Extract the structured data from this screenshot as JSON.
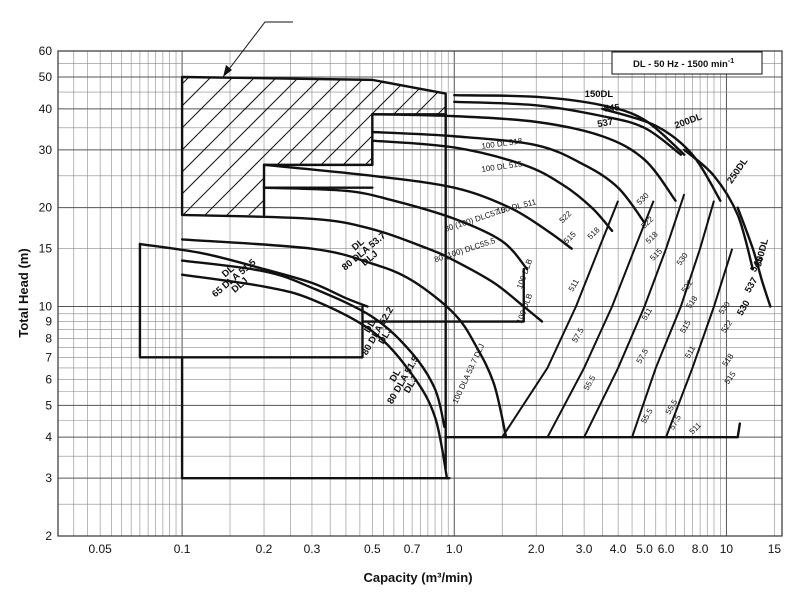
{
  "chart_data": {
    "type": "line",
    "title_box": "DL - 50 Hz - 1500 min",
    "title_sup": "-1",
    "xlabel": "Capacity  (m³/min)",
    "ylabel": "Total Head  (m)",
    "x_scale": "log",
    "y_scale": "log",
    "xlim": [
      0.035,
      16
    ],
    "ylim": [
      2,
      60
    ],
    "grid": true,
    "x_ticks": [
      "0.05",
      "0.1",
      "0.2",
      "0.3",
      "0.5",
      "0.7",
      "1.0",
      "2.0",
      "3.0",
      "4.0",
      "5.0",
      "6.0",
      "8.0",
      "10",
      "15"
    ],
    "y_ticks": [
      "2",
      "3",
      "4",
      "5",
      "6",
      "7",
      "8",
      "9",
      "10",
      "15",
      "20",
      "30",
      "40",
      "50",
      "60"
    ],
    "series": [
      {
        "name": "65 DLA 51.5 DLJ DL",
        "label_lines": [
          "DL",
          "65 DLA 51.5",
          "DLJ"
        ],
        "points": [
          [
            0.07,
            15.5
          ],
          [
            0.12,
            14.5
          ],
          [
            0.2,
            13
          ],
          [
            0.3,
            11.8
          ],
          [
            0.4,
            10.6
          ],
          [
            0.48,
            10
          ]
        ]
      },
      {
        "name": "80 DLA 52.2 DLJ DL",
        "label_lines": [
          "DL",
          "80 DLA 52.2",
          "DLJ"
        ],
        "points": [
          [
            0.1,
            13.8
          ],
          [
            0.2,
            12.8
          ],
          [
            0.3,
            11.4
          ],
          [
            0.5,
            9.3
          ],
          [
            0.7,
            7.2
          ],
          [
            0.85,
            5.6
          ],
          [
            0.92,
            4.3
          ]
        ]
      },
      {
        "name": "80 DLA 51.5 DLJ DL",
        "label_lines": [
          "DL",
          "80 DLA 51.5",
          "DLJ"
        ],
        "points": [
          [
            0.1,
            12.5
          ],
          [
            0.2,
            11.5
          ],
          [
            0.3,
            10.5
          ],
          [
            0.5,
            8.4
          ],
          [
            0.7,
            6.2
          ],
          [
            0.85,
            4.6
          ],
          [
            0.94,
            3
          ]
        ]
      },
      {
        "name": "80 DLA 53.7 DLJ DL",
        "label_lines": [
          "DL",
          "80 DLA 53.7",
          "DLJ"
        ],
        "points": [
          [
            0.1,
            16
          ],
          [
            0.3,
            15
          ],
          [
            0.5,
            13.5
          ],
          [
            0.7,
            12
          ],
          [
            1.0,
            9.5
          ],
          [
            1.2,
            7.6
          ],
          [
            1.4,
            5.8
          ],
          [
            1.55,
            4
          ]
        ]
      },
      {
        "name": "80 (100) DLC55.5",
        "label_lines": [
          "80 (100) DLC55.5"
        ],
        "points": [
          [
            0.1,
            19
          ],
          [
            0.3,
            18.5
          ],
          [
            0.5,
            17.2
          ],
          [
            0.8,
            15
          ],
          [
            1.0,
            13.8
          ],
          [
            1.4,
            11.8
          ],
          [
            1.8,
            10
          ],
          [
            2.1,
            9
          ]
        ]
      },
      {
        "name": "80 (100) DLC57.5",
        "label_lines": [
          "80 (100) DLC57.5"
        ],
        "points": [
          [
            0.2,
            23
          ],
          [
            0.4,
            22.5
          ],
          [
            0.6,
            21
          ],
          [
            1.0,
            18.5
          ],
          [
            1.5,
            15.8
          ],
          [
            1.85,
            13
          ]
        ]
      },
      {
        "name": "100 DL 511",
        "label_lines": [
          "100 DL 511"
        ],
        "points": [
          [
            0.2,
            27
          ],
          [
            0.5,
            25
          ],
          [
            1.0,
            23
          ],
          [
            1.6,
            20
          ],
          [
            2.2,
            17
          ],
          [
            2.7,
            15
          ]
        ]
      },
      {
        "name": "100 DL 515",
        "label_lines": [
          "100 DL 515"
        ],
        "points": [
          [
            0.5,
            32
          ],
          [
            1.0,
            30.5
          ],
          [
            1.8,
            27
          ],
          [
            2.5,
            23.5
          ],
          [
            3.2,
            20
          ],
          [
            3.8,
            17
          ]
        ]
      },
      {
        "name": "100 DL 518",
        "label_lines": [
          "100 DL 518"
        ],
        "points": [
          [
            0.5,
            34
          ],
          [
            1.0,
            33
          ],
          [
            2.0,
            31
          ],
          [
            3.0,
            27
          ],
          [
            4.0,
            23
          ],
          [
            5.0,
            18
          ]
        ]
      },
      {
        "name": "537",
        "label_lines": [
          "537"
        ],
        "points": [
          [
            0.5,
            38.5
          ],
          [
            1.0,
            38
          ],
          [
            2.0,
            36.5
          ],
          [
            3.5,
            33
          ],
          [
            5.0,
            28
          ],
          [
            6.5,
            21
          ]
        ]
      },
      {
        "name": "545",
        "label_lines": [
          "545"
        ],
        "points": [
          [
            1.0,
            42
          ],
          [
            2.0,
            41
          ],
          [
            3.5,
            38
          ],
          [
            5.0,
            35
          ],
          [
            6.8,
            29
          ]
        ]
      },
      {
        "name": "150DL",
        "label_lines": [
          "150DL"
        ],
        "points": [
          [
            1.0,
            44
          ],
          [
            2.0,
            43.5
          ],
          [
            3.5,
            41
          ],
          [
            5.0,
            37
          ],
          [
            7.0,
            29
          ]
        ]
      },
      {
        "name": "200DL",
        "label_lines": [
          "200DL"
        ],
        "points": [
          [
            3.5,
            40
          ],
          [
            5.5,
            35.5
          ],
          [
            7.5,
            29
          ],
          [
            9.5,
            21
          ]
        ]
      },
      {
        "name": "250DL",
        "label_lines": [
          "250DL"
        ],
        "points": [
          [
            7.0,
            30
          ],
          [
            9.0,
            25
          ],
          [
            11.0,
            19
          ],
          [
            12.5,
            13
          ]
        ]
      },
      {
        "name": "300DL",
        "label_lines": [
          "300DL"
        ],
        "points": [
          [
            11.0,
            20
          ],
          [
            12.5,
            15
          ],
          [
            13.5,
            12
          ],
          [
            14.5,
            10
          ]
        ]
      }
    ],
    "small_labels": [
      "100 DLB",
      "100 DLB",
      "100 DLA 53.7 DLJ",
      "522",
      "518",
      "515",
      "511",
      "57.5",
      "55.5",
      "530",
      "522",
      "518",
      "515",
      "511",
      "57.5",
      "55.5",
      "530",
      "522",
      "518",
      "515",
      "511",
      "55.5",
      "57.5",
      "530",
      "522",
      "518",
      "515",
      "511",
      "545",
      "537",
      "530"
    ]
  }
}
